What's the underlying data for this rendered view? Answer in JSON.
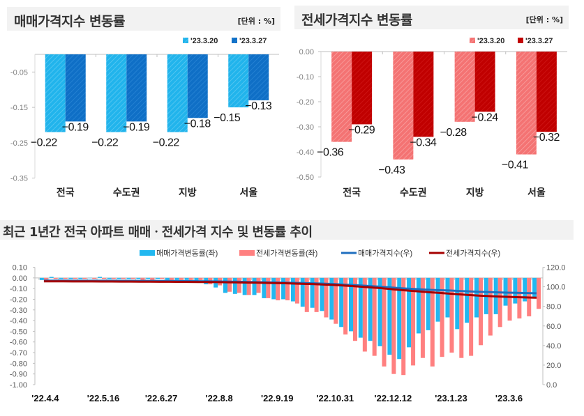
{
  "colors": {
    "sale_prev": "#21b4ec",
    "sale_curr": "#0f6fc6",
    "jeonse_prev": "#f47373",
    "jeonse_curr": "#c00000",
    "sale_bar": "#22b8f0",
    "jeonse_bar": "#ff8080",
    "sale_line": "#1f6fbf",
    "jeonse_line": "#a50000"
  },
  "chart_data": [
    {
      "type": "bar",
      "title": "매매가격지수 변동률",
      "unit": "[단위 : %]",
      "categories": [
        "전국",
        "수도권",
        "지방",
        "서울"
      ],
      "series": [
        {
          "name": "'23.3.20",
          "values": [
            -0.22,
            -0.22,
            -0.22,
            -0.15
          ]
        },
        {
          "name": "'23.3.27",
          "values": [
            -0.19,
            -0.19,
            -0.18,
            -0.13
          ]
        }
      ],
      "ylim": [
        -0.35,
        0
      ],
      "yticks": [
        "-0.05",
        "-0.15",
        "-0.25",
        "-0.35"
      ],
      "legend": "top-right"
    },
    {
      "type": "bar",
      "title": "전세가격지수 변동률",
      "unit": "[단위 : %]",
      "categories": [
        "전국",
        "수도권",
        "지방",
        "서울"
      ],
      "series": [
        {
          "name": "'23.3.20",
          "values": [
            -0.36,
            -0.43,
            -0.28,
            -0.41
          ]
        },
        {
          "name": "'23.3.27",
          "values": [
            -0.29,
            -0.34,
            -0.24,
            -0.32
          ]
        }
      ],
      "ylim": [
        -0.5,
        0
      ],
      "yticks": [
        "0.00",
        "-0.10",
        "-0.20",
        "-0.30",
        "-0.40",
        "-0.50"
      ],
      "legend": "top-right"
    },
    {
      "type": "bar+line",
      "title": "최근 1년간 전국 아파트 매매ㆍ전세가격 지수 및 변동률 추이",
      "xticks": [
        "'22.4.4",
        "'22.5.16",
        "'22.6.27",
        "'22.8.8",
        "'22.9.19",
        "'22.10.31",
        "'22.12.12",
        "'23.1.23",
        "'23.3.6"
      ],
      "ylim_left": [
        -1.0,
        0.1
      ],
      "yticks_left": [
        "0.10",
        "0.00",
        "-0.10",
        "-0.20",
        "-0.30",
        "-0.40",
        "-0.50",
        "-0.60",
        "-0.70",
        "-0.80",
        "-0.90",
        "-1.00"
      ],
      "ylim_right": [
        0,
        120
      ],
      "yticks_right": [
        "120.0",
        "100.0",
        "80.0",
        "60.0",
        "40.0",
        "20.0",
        "0.0"
      ],
      "legend": "top",
      "series": [
        {
          "name": "매매가격변동률(좌)",
          "kind": "bar",
          "axis": "left",
          "values": [
            -0.02,
            0.01,
            -0.01,
            -0.01,
            -0.01,
            0.0,
            0.01,
            -0.01,
            -0.01,
            -0.01,
            -0.01,
            -0.01,
            -0.01,
            -0.02,
            -0.02,
            -0.02,
            -0.03,
            -0.06,
            -0.09,
            -0.14,
            -0.15,
            -0.16,
            -0.16,
            -0.19,
            -0.2,
            -0.2,
            -0.22,
            -0.27,
            -0.28,
            -0.31,
            -0.39,
            -0.46,
            -0.5,
            -0.56,
            -0.59,
            -0.64,
            -0.72,
            -0.76,
            -0.65,
            -0.52,
            -0.49,
            -0.41,
            -0.37,
            -0.48,
            -0.42,
            -0.37,
            -0.34,
            -0.34,
            -0.26,
            -0.24,
            -0.22,
            -0.19
          ]
        },
        {
          "name": "전세가격변동률(좌)",
          "kind": "bar",
          "axis": "left",
          "values": [
            -0.02,
            -0.01,
            -0.01,
            -0.01,
            -0.01,
            -0.01,
            -0.01,
            -0.01,
            -0.01,
            -0.01,
            -0.02,
            -0.02,
            -0.01,
            -0.02,
            -0.02,
            -0.02,
            -0.02,
            -0.06,
            -0.07,
            -0.13,
            -0.14,
            -0.16,
            -0.14,
            -0.19,
            -0.21,
            -0.21,
            -0.24,
            -0.32,
            -0.32,
            -0.37,
            -0.43,
            -0.53,
            -0.59,
            -0.69,
            -0.73,
            -0.83,
            -0.9,
            -0.91,
            -0.82,
            -0.75,
            -0.83,
            -0.74,
            -0.7,
            -0.75,
            -0.73,
            -0.63,
            -0.54,
            -0.46,
            -0.4,
            -0.38,
            -0.36,
            -0.29
          ]
        },
        {
          "name": "매매가격지수(우)",
          "kind": "line",
          "axis": "right",
          "values": [
            106.3,
            106.3,
            106.3,
            106.2,
            106.2,
            106.2,
            106.2,
            106.2,
            106.1,
            106.1,
            106.0,
            106.0,
            105.9,
            105.9,
            105.8,
            105.8,
            105.7,
            105.6,
            105.5,
            105.3,
            105.2,
            105.0,
            104.8,
            104.6,
            104.4,
            104.2,
            104.0,
            103.8,
            103.5,
            103.2,
            102.8,
            102.3,
            101.8,
            101.2,
            100.6,
            100.0,
            99.3,
            98.5,
            97.9,
            97.4,
            96.9,
            96.5,
            96.2,
            95.7,
            95.3,
            94.9,
            94.6,
            94.3,
            94.0,
            93.8,
            93.6,
            93.4
          ]
        },
        {
          "name": "전세가격지수(우)",
          "kind": "line",
          "axis": "right",
          "values": [
            105.6,
            105.6,
            105.6,
            105.5,
            105.5,
            105.5,
            105.4,
            105.4,
            105.3,
            105.3,
            105.2,
            105.2,
            105.1,
            105.1,
            105.0,
            105.0,
            104.9,
            104.9,
            104.8,
            104.6,
            104.5,
            104.3,
            104.2,
            104.0,
            103.8,
            103.6,
            103.3,
            103.0,
            102.7,
            102.3,
            101.9,
            101.3,
            100.7,
            100.0,
            99.3,
            98.5,
            97.6,
            96.7,
            95.9,
            95.2,
            94.4,
            93.7,
            93.0,
            92.3,
            91.6,
            91.0,
            90.5,
            90.1,
            89.7,
            89.4,
            89.1,
            88.8
          ]
        }
      ]
    }
  ]
}
